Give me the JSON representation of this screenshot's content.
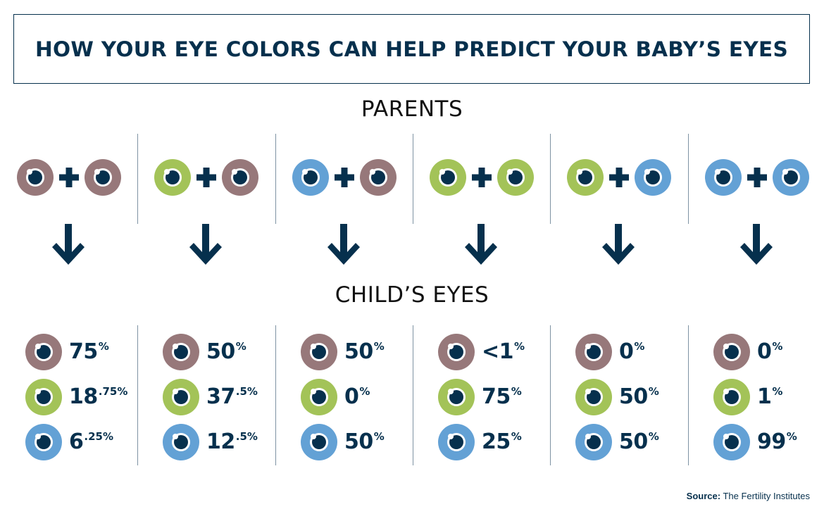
{
  "title": "HOW YOUR EYE COLORS CAN HELP PREDICT YOUR BABY’S EYES",
  "labels": {
    "parents": "PARENTS",
    "child": "CHILD’S EYES"
  },
  "colors": {
    "brown": "#97787a",
    "green": "#a3c358",
    "blue": "#63a1d5",
    "navy": "#06304d",
    "divider": "#7e93a3"
  },
  "icons": {
    "eye": "eye-icon",
    "plus": "plus-icon",
    "arrow": "arrow-down-icon"
  },
  "combinations": [
    {
      "parents": [
        "brown",
        "brown"
      ],
      "child": [
        {
          "color": "brown",
          "main": "75",
          "sup": "%"
        },
        {
          "color": "green",
          "main": "18",
          "sup": ".75%"
        },
        {
          "color": "blue",
          "main": "6",
          "sup": ".25%"
        }
      ]
    },
    {
      "parents": [
        "green",
        "brown"
      ],
      "child": [
        {
          "color": "brown",
          "main": "50",
          "sup": "%"
        },
        {
          "color": "green",
          "main": "37",
          "sup": ".5%"
        },
        {
          "color": "blue",
          "main": "12",
          "sup": ".5%"
        }
      ]
    },
    {
      "parents": [
        "blue",
        "brown"
      ],
      "child": [
        {
          "color": "brown",
          "main": "50",
          "sup": "%"
        },
        {
          "color": "green",
          "main": "0",
          "sup": "%"
        },
        {
          "color": "blue",
          "main": "50",
          "sup": "%"
        }
      ]
    },
    {
      "parents": [
        "green",
        "green"
      ],
      "child": [
        {
          "color": "brown",
          "main": "<1",
          "sup": "%"
        },
        {
          "color": "green",
          "main": "75",
          "sup": "%"
        },
        {
          "color": "blue",
          "main": "25",
          "sup": "%"
        }
      ]
    },
    {
      "parents": [
        "green",
        "blue"
      ],
      "child": [
        {
          "color": "brown",
          "main": "0",
          "sup": "%"
        },
        {
          "color": "green",
          "main": "50",
          "sup": "%"
        },
        {
          "color": "blue",
          "main": "50",
          "sup": "%"
        }
      ]
    },
    {
      "parents": [
        "blue",
        "blue"
      ],
      "child": [
        {
          "color": "brown",
          "main": "0",
          "sup": "%"
        },
        {
          "color": "green",
          "main": "1",
          "sup": "%"
        },
        {
          "color": "blue",
          "main": "99",
          "sup": "%"
        }
      ]
    }
  ],
  "source": {
    "label": "Source:",
    "text": " The Fertility Institutes"
  }
}
